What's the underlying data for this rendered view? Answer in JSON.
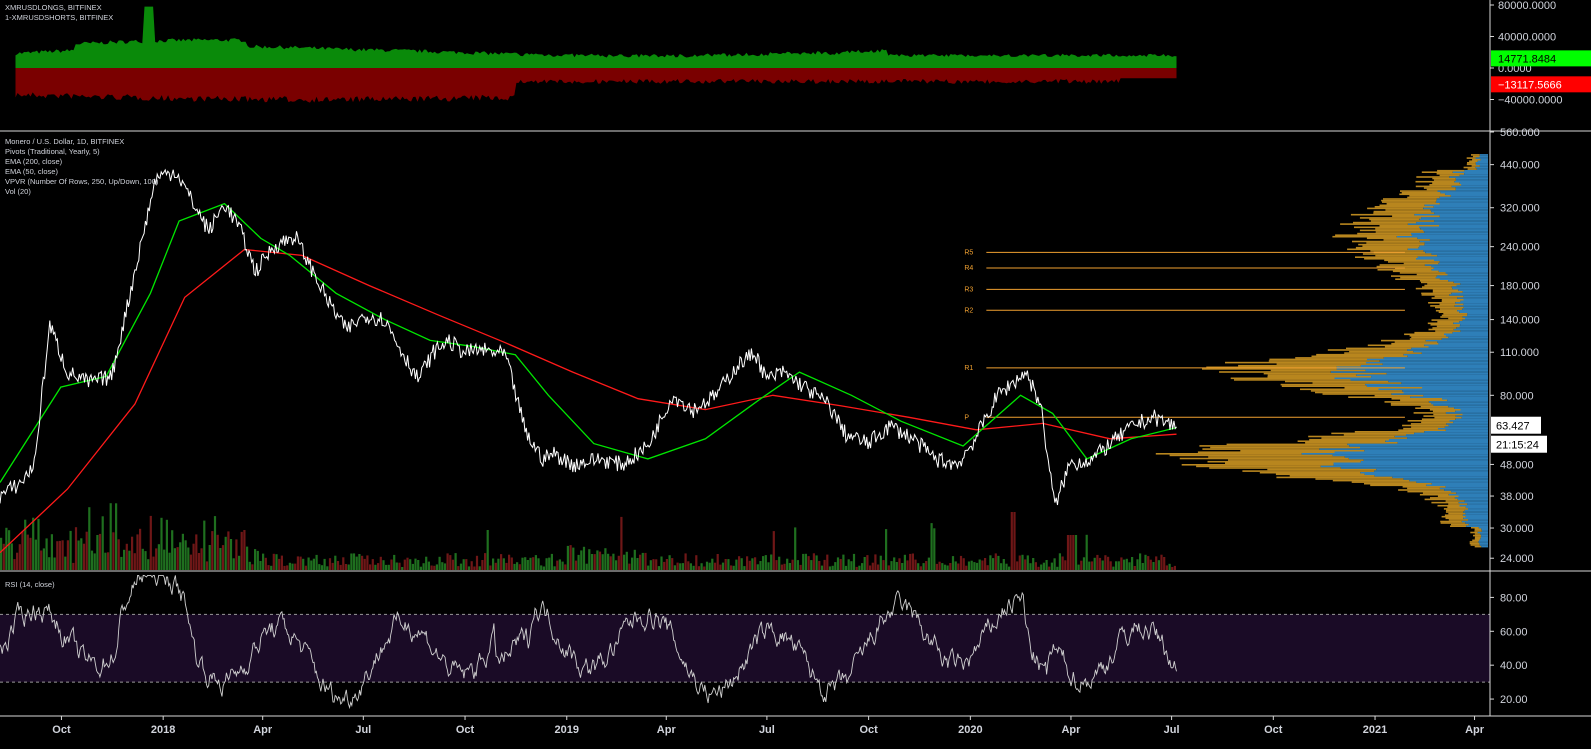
{
  "legends": {
    "top": [
      "XMRUSDLONGS, BITFINEX",
      "1-XMRUSDSHORTS, BITFINEX"
    ],
    "main": [
      "Monero / U.S. Dollar, 1D, BITFINEX",
      "Pivots (Traditional, Yearly, 5)",
      "EMA (200, close)",
      "EMA (50, close)",
      "VPVR (Number Of Rows, 250, Up/Down, 100)",
      "Vol (20)"
    ],
    "rsi": [
      "RSI (14, close)"
    ]
  },
  "colors": {
    "background": "#000000",
    "grid_divider": "#ffffff",
    "price": "#ffffff",
    "ema50": "#00e600",
    "ema200": "#ff1a1a",
    "longs": "#0a8a0a",
    "shorts": "#7a0000",
    "pivot": "#f0a030",
    "vpvr_up": "#2e7fb8",
    "vpvr_down": "#b8861e",
    "rsi_band": "#1a0b26",
    "rsi_line": "#cfcfcf",
    "vol_up": "#1f6f1f",
    "vol_down": "#6f1717",
    "tag_long": "#00ff00",
    "tag_short": "#ff0000"
  },
  "x_axis": {
    "ticks": [
      {
        "label": "Oct",
        "date": "2017-10-01"
      },
      {
        "label": "2018",
        "date": "2018-01-01"
      },
      {
        "label": "Apr",
        "date": "2018-04-01"
      },
      {
        "label": "Jul",
        "date": "2018-07-01"
      },
      {
        "label": "Oct",
        "date": "2018-10-01"
      },
      {
        "label": "2019",
        "date": "2019-01-01"
      },
      {
        "label": "Apr",
        "date": "2019-04-01"
      },
      {
        "label": "Jul",
        "date": "2019-07-01"
      },
      {
        "label": "Oct",
        "date": "2019-10-01"
      },
      {
        "label": "2020",
        "date": "2020-01-01"
      },
      {
        "label": "Apr",
        "date": "2020-04-01"
      },
      {
        "label": "Jul",
        "date": "2020-07-01"
      },
      {
        "label": "Oct",
        "date": "2020-10-01"
      },
      {
        "label": "2021",
        "date": "2021-01-01"
      },
      {
        "label": "Apr",
        "date": "2021-04-01"
      }
    ]
  },
  "top_pane": {
    "y_ticks": [
      {
        "label": "80000.0000",
        "value": 80000
      },
      {
        "label": "40000.0000",
        "value": 40000
      },
      {
        "label": "0.0000",
        "value": 0
      },
      {
        "label": "−40000.0000",
        "value": -40000
      }
    ],
    "last_long": {
      "label": "14771.8484",
      "value": 14771.8484
    },
    "last_short": {
      "label": "−13117.5666",
      "value": -13117.5666
    }
  },
  "main_pane": {
    "y_ticks": [
      {
        "label": "560.000",
        "value": 560
      },
      {
        "label": "440.000",
        "value": 440
      },
      {
        "label": "320.000",
        "value": 320
      },
      {
        "label": "240.000",
        "value": 240
      },
      {
        "label": "180.000",
        "value": 180
      },
      {
        "label": "140.000",
        "value": 140
      },
      {
        "label": "110.000",
        "value": 110
      },
      {
        "label": "80.000",
        "value": 80
      },
      {
        "label": "48.000",
        "value": 48
      },
      {
        "label": "38.000",
        "value": 38
      },
      {
        "label": "30.000",
        "value": 30
      },
      {
        "label": "24.000",
        "value": 24
      }
    ],
    "last_price": {
      "label": "63.427",
      "value": 63.427
    },
    "countdown": "21:15:24",
    "pivots": [
      {
        "label": "R5",
        "value": 230
      },
      {
        "label": "R4",
        "value": 205
      },
      {
        "label": "R3",
        "value": 175
      },
      {
        "label": "R2",
        "value": 150
      },
      {
        "label": "R1",
        "value": 98
      },
      {
        "label": "P",
        "value": 68
      }
    ],
    "pivot_start": "2020-01-01",
    "pivot_end": "2020-12-31"
  },
  "rsi_pane": {
    "y_ticks": [
      {
        "label": "80.00",
        "value": 80
      },
      {
        "label": "60.00",
        "value": 60
      },
      {
        "label": "40.00",
        "value": 40
      },
      {
        "label": "20.00",
        "value": 20
      }
    ],
    "upper_band": 70,
    "lower_band": 30
  },
  "chart_data": {
    "type": "line",
    "series": [
      {
        "name": "Monero / U.S. Dollar, 1D, BITFINEX",
        "x": [
          "2017-08-01",
          "2017-08-20",
          "2017-09-01",
          "2017-09-15",
          "2017-10-01",
          "2017-10-20",
          "2017-11-10",
          "2017-12-01",
          "2017-12-20",
          "2018-01-07",
          "2018-01-25",
          "2018-02-06",
          "2018-02-20",
          "2018-03-05",
          "2018-03-20",
          "2018-04-05",
          "2018-04-25",
          "2018-05-05",
          "2018-05-25",
          "2018-06-10",
          "2018-06-28",
          "2018-07-15",
          "2018-07-25",
          "2018-08-14",
          "2018-08-28",
          "2018-09-10",
          "2018-09-25",
          "2018-10-10",
          "2018-11-01",
          "2018-11-20",
          "2018-12-05",
          "2018-12-15",
          "2019-01-01",
          "2019-01-25",
          "2019-02-15",
          "2019-03-10",
          "2019-04-01",
          "2019-04-20",
          "2019-05-10",
          "2019-05-30",
          "2019-06-15",
          "2019-06-25",
          "2019-07-10",
          "2019-07-30",
          "2019-08-20",
          "2019-09-05",
          "2019-09-25",
          "2019-10-15",
          "2019-11-05",
          "2019-11-25",
          "2019-12-15",
          "2019-12-31",
          "2020-01-20",
          "2020-02-15",
          "2020-02-28",
          "2020-03-12",
          "2020-03-25",
          "2020-04-15",
          "2020-05-01",
          "2020-05-25",
          "2020-06-10",
          "2020-06-30"
        ],
        "values": [
          38,
          42,
          48,
          135,
          95,
          88,
          92,
          200,
          400,
          420,
          320,
          270,
          330,
          280,
          200,
          240,
          260,
          220,
          160,
          130,
          145,
          140,
          120,
          90,
          110,
          120,
          110,
          112,
          108,
          60,
          50,
          52,
          48,
          50,
          48,
          55,
          80,
          72,
          80,
          100,
          110,
          90,
          95,
          85,
          75,
          60,
          56,
          64,
          58,
          50,
          48,
          58,
          80,
          95,
          75,
          35,
          48,
          50,
          56,
          65,
          68,
          63.4
        ]
      },
      {
        "name": "EMA (50, close)",
        "x": [
          "2017-08-01",
          "2017-09-25",
          "2017-11-05",
          "2017-12-15",
          "2018-01-10",
          "2018-02-20",
          "2018-03-25",
          "2018-04-20",
          "2018-06-01",
          "2018-07-15",
          "2018-08-25",
          "2018-10-01",
          "2018-11-10",
          "2018-12-10",
          "2019-01-20",
          "2019-03-10",
          "2019-05-01",
          "2019-06-20",
          "2019-07-25",
          "2019-09-10",
          "2019-10-25",
          "2019-12-20",
          "2020-02-10",
          "2020-03-10",
          "2020-04-10",
          "2020-05-20",
          "2020-06-30"
        ],
        "values": [
          42,
          85,
          92,
          170,
          290,
          330,
          255,
          225,
          170,
          140,
          120,
          115,
          108,
          80,
          56,
          50,
          58,
          78,
          95,
          80,
          66,
          55,
          80,
          70,
          50,
          58,
          63
        ]
      },
      {
        "name": "EMA (200, close)",
        "x": [
          "2017-08-01",
          "2017-10-01",
          "2017-12-01",
          "2018-01-15",
          "2018-03-10",
          "2018-05-01",
          "2018-07-01",
          "2018-09-01",
          "2018-11-01",
          "2019-01-01",
          "2019-03-01",
          "2019-05-01",
          "2019-07-01",
          "2019-09-01",
          "2019-11-01",
          "2020-01-01",
          "2020-03-01",
          "2020-05-01",
          "2020-06-30"
        ],
        "values": [
          25,
          40,
          75,
          165,
          235,
          225,
          180,
          145,
          118,
          95,
          78,
          72,
          80,
          74,
          68,
          62,
          65,
          58,
          60
        ]
      }
    ],
    "ylabel": "",
    "scale": "log",
    "ylim": [
      22,
      560
    ]
  }
}
